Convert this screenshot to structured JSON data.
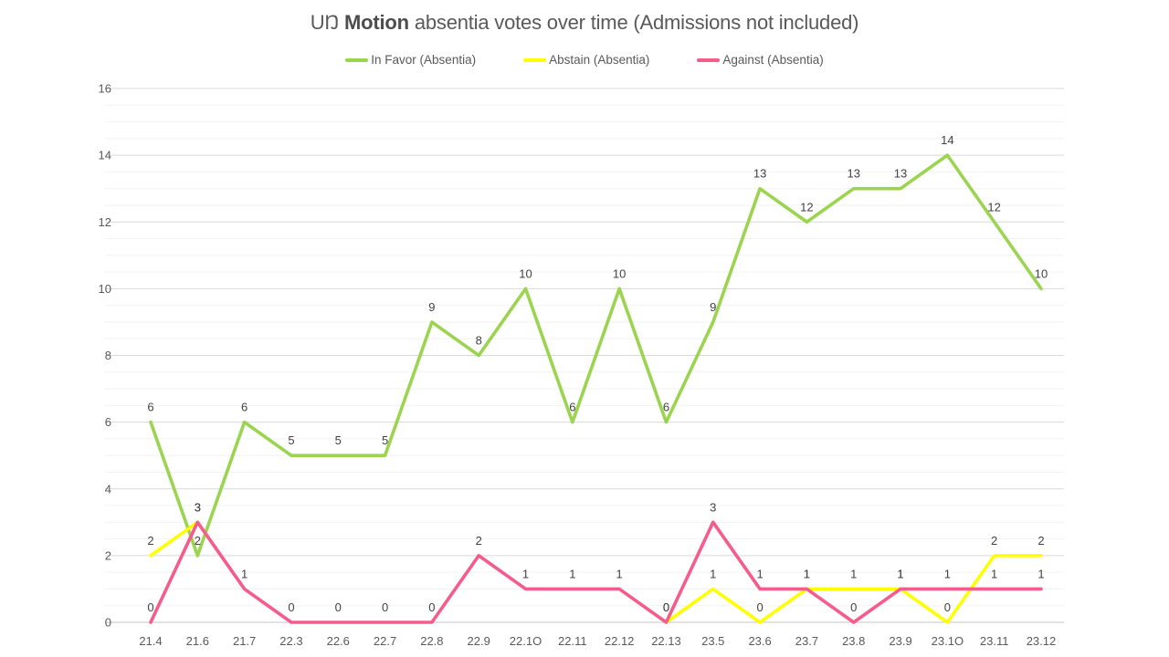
{
  "title": {
    "prefix": "UŊ ",
    "bold": "Motion",
    "suffix": " absentia votes over time (Admissions not included)"
  },
  "chart_data": {
    "type": "line",
    "title": "UŊ Motion absentia votes over time (Admissions not included)",
    "legend_position": "top",
    "grid": true,
    "ylim": [
      0,
      16
    ],
    "y_ticks": [
      0,
      2,
      4,
      6,
      8,
      10,
      12,
      14,
      16
    ],
    "minor_grid_step": 0.5,
    "categories": [
      "21.4",
      "21.6",
      "21.7",
      "22.3",
      "22.6",
      "22.7",
      "22.8",
      "22.9",
      "22.1O",
      "22.11",
      "22.12",
      "22.13",
      "23.5",
      "23.6",
      "23.7",
      "23.8",
      "23.9",
      "23.1O",
      "23.11",
      "23.12"
    ],
    "series": [
      {
        "name": "In Favor (Absentia)",
        "color": "#9BD44F",
        "values": [
          6,
          2,
          6,
          5,
          5,
          5,
          9,
          8,
          10,
          6,
          10,
          6,
          9,
          13,
          12,
          13,
          13,
          14,
          12,
          10
        ]
      },
      {
        "name": "Abstain (Absentia)",
        "color": "#FFFF00",
        "values": [
          2,
          3,
          null,
          null,
          null,
          null,
          null,
          null,
          null,
          null,
          null,
          0,
          1,
          0,
          1,
          1,
          1,
          0,
          2,
          2
        ]
      },
      {
        "name": "Against (Absentia)",
        "color": "#F65C8B",
        "values": [
          0,
          3,
          1,
          0,
          0,
          0,
          0,
          2,
          1,
          1,
          1,
          0,
          3,
          1,
          1,
          0,
          1,
          1,
          1,
          1
        ]
      }
    ]
  }
}
